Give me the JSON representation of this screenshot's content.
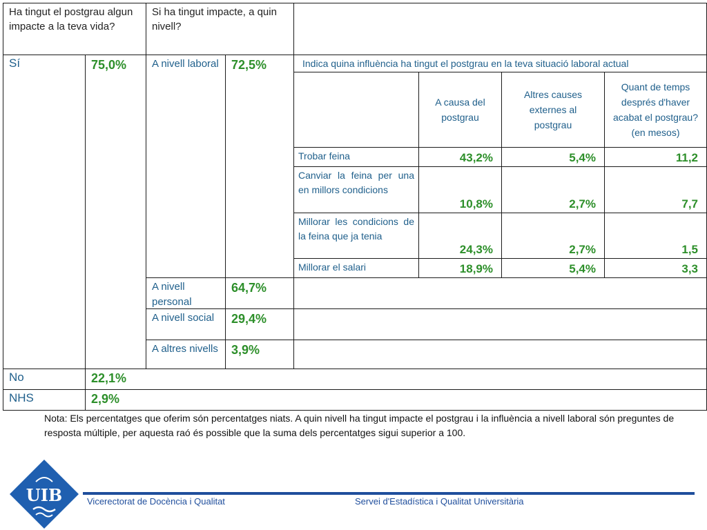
{
  "headers": {
    "impact_question": "Ha tingut el postgrau algun impacte a la teva vida?",
    "level_question": "Si ha tingut impacte, a quin nivell?",
    "influence_question": "Indica quina influència ha tingut el postgrau en la teva situació laboral actual"
  },
  "sub_headers": {
    "col1": "A causa del postgrau",
    "col2": "Altres causes externes al postgrau",
    "col3": "Quant de temps després d'haver acabat el postgrau? (en mesos)"
  },
  "answers": {
    "yes": {
      "label": "Sí",
      "value": "75,0%"
    },
    "no": {
      "label": "No",
      "value": "22,1%"
    },
    "nhs": {
      "label": "NHS",
      "value": "2,9%"
    }
  },
  "levels": [
    {
      "label": "A nivell laboral",
      "value": "72,5%"
    },
    {
      "label": "A nivell personal",
      "value": "64,7%"
    },
    {
      "label": "A nivell social",
      "value": "29,4%"
    },
    {
      "label": "A altres nivells",
      "value": "3,9%"
    }
  ],
  "labor_rows": [
    {
      "label": "Trobar feina",
      "a_causa": "43,2%",
      "altres": "5,4%",
      "temps": "11,2"
    },
    {
      "label": "Canviar la feina per una en millors condicions",
      "a_causa": "10,8%",
      "altres": "2,7%",
      "temps": "7,7"
    },
    {
      "label": "Millorar les condicions de la feina que ja tenia",
      "a_causa": "24,3%",
      "altres": "2,7%",
      "temps": "1,5"
    },
    {
      "label": "Millorar el salari",
      "a_causa": "18,9%",
      "altres": "5,4%",
      "temps": "3,3"
    }
  ],
  "note": "Nota: Els percentatges que oferim són percentatges niats. A quin nivell ha tingut impacte el postgrau i la influència a nivell laboral són preguntes de resposta múltiple, per aquesta raó és possible que la suma dels percentatges sigui superior a 100.",
  "footer": {
    "logo_text": "UIB",
    "left": "Vicerectorat de Docència i Qualitat",
    "right": "Servei d'Estadística i Qualitat Universitària"
  },
  "colors": {
    "label_blue": "#1f5f8b",
    "value_green": "#2d8f2a",
    "footer_blue": "#1f4e9c"
  }
}
